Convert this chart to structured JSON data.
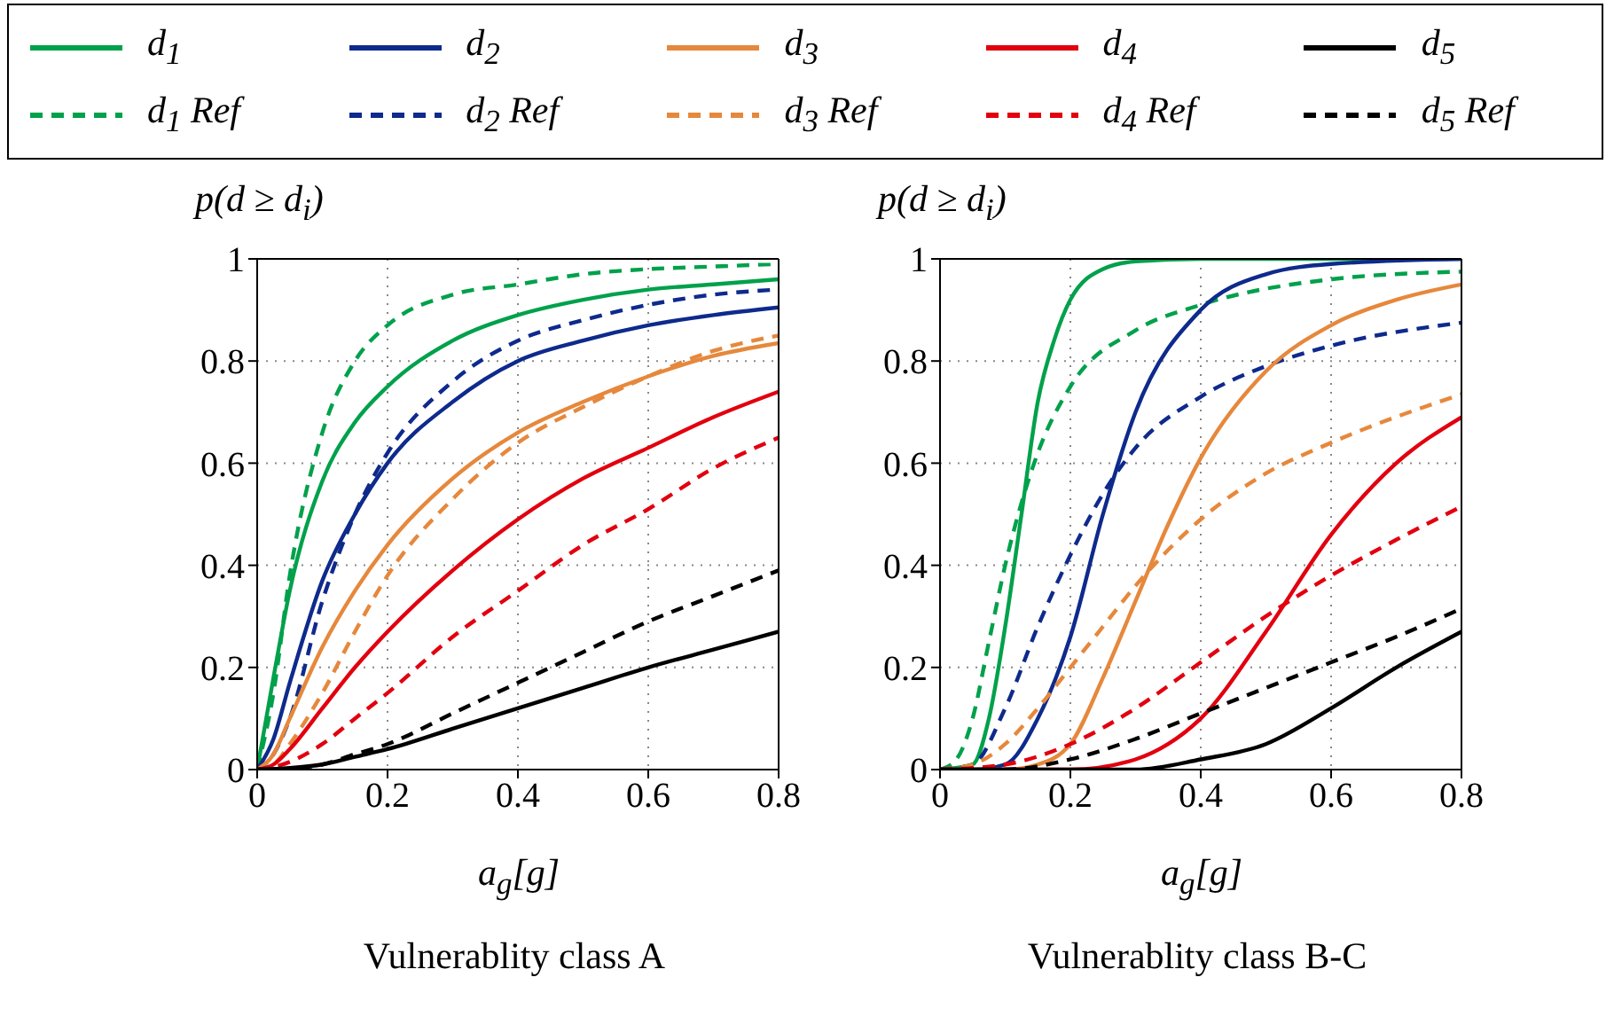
{
  "chart_data": [
    {
      "type": "line",
      "title": "Vulnerablity class A",
      "xlabel": "a$_{g}$[g]",
      "ylabel": "p(d ≥ d$_{i}$)",
      "xlim": [
        0,
        0.8
      ],
      "ylim": [
        0,
        1
      ],
      "xticks": [
        0,
        0.2,
        0.4,
        0.6,
        0.8
      ],
      "yticks": [
        0,
        0.2,
        0.4,
        0.6,
        0.8,
        1
      ],
      "grid": true,
      "legend": "top",
      "series": [
        {
          "name": "d$_{1}$",
          "color": "#00a14b",
          "line_style": "solid",
          "x": [
            0,
            0.025,
            0.05,
            0.1,
            0.15,
            0.2,
            0.3,
            0.4,
            0.5,
            0.6,
            0.7,
            0.8
          ],
          "values": [
            0,
            0.18,
            0.35,
            0.565,
            0.68,
            0.75,
            0.84,
            0.89,
            0.92,
            0.94,
            0.95,
            0.96
          ]
        },
        {
          "name": "d$_{1}$ Ref",
          "color": "#00a14b",
          "line_style": "dashed",
          "x": [
            0,
            0.025,
            0.05,
            0.1,
            0.15,
            0.2,
            0.3,
            0.4,
            0.5,
            0.6,
            0.7,
            0.8
          ],
          "values": [
            0,
            0.15,
            0.38,
            0.66,
            0.8,
            0.87,
            0.93,
            0.95,
            0.97,
            0.98,
            0.985,
            0.99
          ]
        },
        {
          "name": "d$_{2}$",
          "color": "#0e2a8c",
          "line_style": "solid",
          "x": [
            0,
            0.025,
            0.05,
            0.1,
            0.15,
            0.2,
            0.3,
            0.4,
            0.5,
            0.6,
            0.7,
            0.8
          ],
          "values": [
            0,
            0.06,
            0.17,
            0.37,
            0.5,
            0.6,
            0.72,
            0.8,
            0.84,
            0.87,
            0.89,
            0.905
          ]
        },
        {
          "name": "d$_{2}$ Ref",
          "color": "#0e2a8c",
          "line_style": "dashed",
          "x": [
            0,
            0.025,
            0.05,
            0.1,
            0.15,
            0.2,
            0.3,
            0.4,
            0.5,
            0.6,
            0.7,
            0.8
          ],
          "values": [
            0,
            0.03,
            0.1,
            0.33,
            0.5,
            0.62,
            0.76,
            0.84,
            0.88,
            0.91,
            0.93,
            0.94
          ]
        },
        {
          "name": "d$_{3}$",
          "color": "#e6883c",
          "line_style": "solid",
          "x": [
            0,
            0.025,
            0.05,
            0.1,
            0.15,
            0.2,
            0.3,
            0.4,
            0.5,
            0.6,
            0.7,
            0.8
          ],
          "values": [
            0,
            0.03,
            0.1,
            0.24,
            0.35,
            0.44,
            0.57,
            0.66,
            0.72,
            0.77,
            0.81,
            0.835
          ]
        },
        {
          "name": "d$_{3}$ Ref",
          "color": "#e6883c",
          "line_style": "dashed",
          "x": [
            0,
            0.025,
            0.05,
            0.1,
            0.15,
            0.2,
            0.3,
            0.4,
            0.5,
            0.6,
            0.7,
            0.8
          ],
          "values": [
            0,
            0.01,
            0.05,
            0.15,
            0.27,
            0.38,
            0.53,
            0.64,
            0.71,
            0.77,
            0.82,
            0.85
          ]
        },
        {
          "name": "d$_{4}$",
          "color": "#e2000f",
          "line_style": "solid",
          "x": [
            0,
            0.025,
            0.05,
            0.1,
            0.15,
            0.2,
            0.3,
            0.4,
            0.5,
            0.6,
            0.7,
            0.8
          ],
          "values": [
            0,
            0.01,
            0.04,
            0.12,
            0.2,
            0.27,
            0.39,
            0.49,
            0.57,
            0.63,
            0.69,
            0.74
          ]
        },
        {
          "name": "d$_{4}$ Ref",
          "color": "#e2000f",
          "line_style": "dashed",
          "x": [
            0,
            0.025,
            0.05,
            0.1,
            0.15,
            0.2,
            0.3,
            0.4,
            0.5,
            0.6,
            0.7,
            0.8
          ],
          "values": [
            0,
            0.005,
            0.015,
            0.05,
            0.1,
            0.15,
            0.26,
            0.35,
            0.44,
            0.51,
            0.59,
            0.65
          ]
        },
        {
          "name": "d$_{5}$",
          "color": "#000000",
          "line_style": "solid",
          "x": [
            0,
            0.05,
            0.1,
            0.15,
            0.2,
            0.3,
            0.4,
            0.5,
            0.6,
            0.7,
            0.8
          ],
          "values": [
            0,
            0.003,
            0.01,
            0.025,
            0.04,
            0.08,
            0.12,
            0.16,
            0.2,
            0.235,
            0.27
          ]
        },
        {
          "name": "d$_{5}$ Ref",
          "color": "#000000",
          "line_style": "dashed",
          "x": [
            0,
            0.05,
            0.1,
            0.15,
            0.2,
            0.3,
            0.4,
            0.5,
            0.6,
            0.7,
            0.8
          ],
          "values": [
            0,
            0.002,
            0.01,
            0.03,
            0.05,
            0.11,
            0.17,
            0.23,
            0.29,
            0.34,
            0.39
          ]
        }
      ]
    },
    {
      "type": "line",
      "title": "Vulnerablity class B-C",
      "xlabel": "a$_{g}$[g]",
      "ylabel": "p(d ≥ d$_{i}$)",
      "xlim": [
        0,
        0.8
      ],
      "ylim": [
        0,
        1
      ],
      "xticks": [
        0,
        0.2,
        0.4,
        0.6,
        0.8
      ],
      "yticks": [
        0,
        0.2,
        0.4,
        0.6,
        0.8,
        1
      ],
      "grid": true,
      "series": [
        {
          "color": "#00a14b",
          "line_style": "solid",
          "x": [
            0,
            0.05,
            0.075,
            0.1,
            0.125,
            0.15,
            0.175,
            0.2,
            0.25,
            0.3,
            0.4,
            0.6,
            0.8
          ],
          "values": [
            0,
            0.01,
            0.1,
            0.28,
            0.5,
            0.72,
            0.84,
            0.92,
            0.98,
            0.995,
            1,
            1,
            1
          ]
        },
        {
          "color": "#00a14b",
          "line_style": "dashed",
          "x": [
            0,
            0.025,
            0.05,
            0.075,
            0.1,
            0.15,
            0.2,
            0.3,
            0.4,
            0.6,
            0.8
          ],
          "values": [
            0,
            0.02,
            0.1,
            0.25,
            0.4,
            0.62,
            0.75,
            0.86,
            0.91,
            0.96,
            0.975
          ]
        },
        {
          "color": "#0e2a8c",
          "line_style": "solid",
          "x": [
            0,
            0.05,
            0.1,
            0.15,
            0.2,
            0.25,
            0.3,
            0.4,
            0.5,
            0.6,
            0.8
          ],
          "values": [
            0,
            0,
            0.01,
            0.1,
            0.26,
            0.5,
            0.7,
            0.9,
            0.97,
            0.99,
            1
          ]
        },
        {
          "color": "#0e2a8c",
          "line_style": "dashed",
          "x": [
            0,
            0.05,
            0.1,
            0.15,
            0.2,
            0.25,
            0.3,
            0.4,
            0.5,
            0.6,
            0.8
          ],
          "values": [
            0,
            0.01,
            0.12,
            0.28,
            0.42,
            0.54,
            0.63,
            0.73,
            0.79,
            0.83,
            0.875
          ]
        },
        {
          "color": "#e6883c",
          "line_style": "solid",
          "x": [
            0,
            0.1,
            0.15,
            0.2,
            0.25,
            0.3,
            0.35,
            0.4,
            0.5,
            0.6,
            0.7,
            0.8
          ],
          "values": [
            0,
            0,
            0.01,
            0.05,
            0.18,
            0.33,
            0.48,
            0.61,
            0.78,
            0.87,
            0.92,
            0.95
          ]
        },
        {
          "color": "#e6883c",
          "line_style": "dashed",
          "x": [
            0,
            0.05,
            0.1,
            0.15,
            0.2,
            0.25,
            0.3,
            0.35,
            0.4,
            0.5,
            0.6,
            0.8
          ],
          "values": [
            0,
            0.01,
            0.05,
            0.12,
            0.2,
            0.28,
            0.36,
            0.43,
            0.49,
            0.58,
            0.64,
            0.735
          ]
        },
        {
          "color": "#e2000f",
          "line_style": "solid",
          "x": [
            0,
            0.1,
            0.2,
            0.3,
            0.35,
            0.4,
            0.5,
            0.6,
            0.7,
            0.8
          ],
          "values": [
            0,
            0,
            0,
            0.02,
            0.05,
            0.1,
            0.27,
            0.46,
            0.6,
            0.69
          ]
        },
        {
          "color": "#e2000f",
          "line_style": "dashed",
          "x": [
            0,
            0.1,
            0.2,
            0.3,
            0.4,
            0.5,
            0.6,
            0.7,
            0.8
          ],
          "values": [
            0,
            0.01,
            0.05,
            0.12,
            0.21,
            0.3,
            0.38,
            0.45,
            0.515
          ]
        },
        {
          "color": "#000000",
          "line_style": "solid",
          "x": [
            0,
            0.2,
            0.3,
            0.4,
            0.5,
            0.6,
            0.7,
            0.8
          ],
          "values": [
            0,
            0,
            0,
            0.02,
            0.05,
            0.12,
            0.2,
            0.27
          ]
        },
        {
          "color": "#000000",
          "line_style": "dashed",
          "x": [
            0,
            0.1,
            0.2,
            0.3,
            0.4,
            0.5,
            0.6,
            0.7,
            0.8
          ],
          "values": [
            0,
            0,
            0.02,
            0.06,
            0.11,
            0.16,
            0.21,
            0.26,
            0.315
          ]
        }
      ]
    }
  ]
}
